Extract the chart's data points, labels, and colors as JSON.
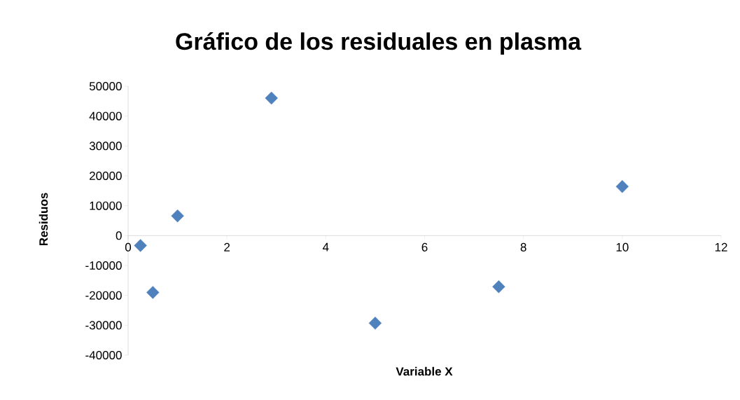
{
  "chart_data": {
    "type": "scatter",
    "title": "Gráfico de los residuales en plasma",
    "xlabel": "Variable X",
    "ylabel": "Residuos",
    "x": [
      0.25,
      0.5,
      1,
      2.9,
      5,
      7.5,
      10
    ],
    "values": [
      -3300,
      -19000,
      6600,
      46000,
      -29300,
      -17100,
      16400
    ],
    "color": "#4f81bd",
    "marker": "diamond",
    "xlim": [
      0,
      12
    ],
    "xticks": [
      0,
      2,
      4,
      6,
      8,
      10,
      12
    ],
    "ylim": [
      -40000,
      50000
    ],
    "yticks": [
      -40000,
      -30000,
      -20000,
      -10000,
      0,
      10000,
      20000,
      30000,
      40000,
      50000
    ],
    "grid": false
  }
}
